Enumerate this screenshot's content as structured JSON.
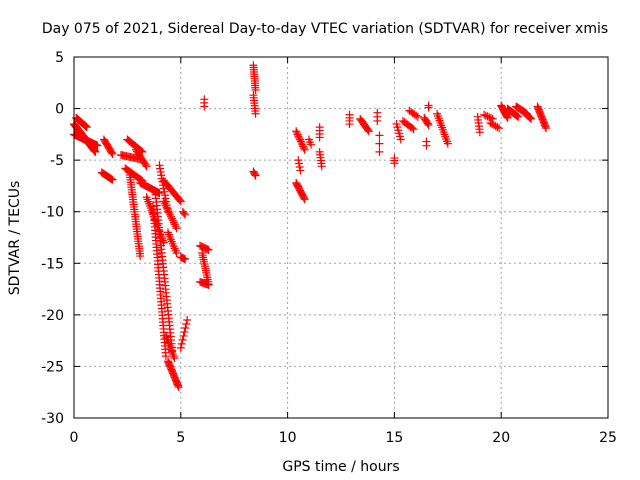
{
  "chart_data": {
    "type": "scatter",
    "title": "Day 075 of 2021, Sidereal Day-to-day VTEC variation (SDTVAR) for receiver xmis",
    "xlabel": "GPS time / hours",
    "ylabel": "SDTVAR / TECUs",
    "xlim": [
      0,
      25
    ],
    "ylim": [
      -30,
      5
    ],
    "xticks": [
      0,
      5,
      10,
      15,
      20,
      25
    ],
    "xtick_labels": [
      "0",
      "5",
      "10",
      "15",
      "20",
      "25"
    ],
    "yticks": [
      5,
      0,
      -5,
      -10,
      -15,
      -20,
      -25,
      -30
    ],
    "ytick_labels": [
      "5",
      "0",
      "-5",
      "-10",
      "-15",
      "-20",
      "-25",
      "-30"
    ],
    "grid": true,
    "marker": "+",
    "color": "#ff0000",
    "series_segments": [
      {
        "x0": 0.0,
        "y0": -1.5,
        "x1": 1.0,
        "y1": -4.2,
        "n": 50
      },
      {
        "x0": 0.0,
        "y0": -2.5,
        "x1": 1.1,
        "y1": -3.6,
        "n": 40
      },
      {
        "x0": 0.1,
        "y0": -0.9,
        "x1": 0.6,
        "y1": -1.8,
        "n": 15
      },
      {
        "x0": 1.4,
        "y0": -3.0,
        "x1": 1.8,
        "y1": -4.4,
        "n": 12
      },
      {
        "x0": 1.3,
        "y0": -6.2,
        "x1": 1.8,
        "y1": -6.9,
        "n": 12
      },
      {
        "x0": 2.2,
        "y0": -4.5,
        "x1": 3.1,
        "y1": -4.9,
        "n": 15
      },
      {
        "x0": 2.4,
        "y0": -5.8,
        "x1": 3.2,
        "y1": -7.0,
        "n": 15
      },
      {
        "x0": 2.5,
        "y0": -3.0,
        "x1": 3.2,
        "y1": -4.2,
        "n": 14
      },
      {
        "x0": 2.9,
        "y0": -4.0,
        "x1": 3.4,
        "y1": -5.6,
        "n": 12
      },
      {
        "x0": 2.6,
        "y0": -6.2,
        "x1": 3.1,
        "y1": -14.3,
        "n": 35
      },
      {
        "x0": 3.1,
        "y0": -7.2,
        "x1": 4.0,
        "y1": -8.2,
        "n": 20
      },
      {
        "x0": 3.4,
        "y0": -8.6,
        "x1": 4.2,
        "y1": -13.0,
        "n": 22
      },
      {
        "x0": 3.7,
        "y0": -9.5,
        "x1": 4.3,
        "y1": -24.0,
        "n": 45
      },
      {
        "x0": 3.8,
        "y0": -8.0,
        "x1": 4.6,
        "y1": -23.5,
        "n": 45
      },
      {
        "x0": 4.0,
        "y0": -5.5,
        "x1": 4.4,
        "y1": -10.0,
        "n": 15
      },
      {
        "x0": 4.2,
        "y0": -9.0,
        "x1": 4.8,
        "y1": -11.6,
        "n": 15
      },
      {
        "x0": 4.2,
        "y0": -7.0,
        "x1": 5.0,
        "y1": -9.0,
        "n": 18
      },
      {
        "x0": 4.4,
        "y0": -12.0,
        "x1": 4.8,
        "y1": -14.0,
        "n": 10
      },
      {
        "x0": 4.3,
        "y0": -22.0,
        "x1": 4.7,
        "y1": -24.2,
        "n": 12
      },
      {
        "x0": 4.4,
        "y0": -24.5,
        "x1": 4.9,
        "y1": -27.0,
        "n": 20
      },
      {
        "x0": 5.0,
        "y0": -14.4,
        "x1": 5.2,
        "y1": -14.6,
        "n": 5
      },
      {
        "x0": 5.0,
        "y0": -23.2,
        "x1": 5.3,
        "y1": -20.5,
        "n": 8
      },
      {
        "x0": 5.1,
        "y0": -10.0,
        "x1": 5.2,
        "y1": -10.3,
        "n": 3
      },
      {
        "x0": 5.9,
        "y0": -13.3,
        "x1": 6.3,
        "y1": -13.7,
        "n": 8
      },
      {
        "x0": 6.0,
        "y0": -14.0,
        "x1": 6.3,
        "y1": -17.0,
        "n": 15
      },
      {
        "x0": 5.9,
        "y0": -16.8,
        "x1": 6.3,
        "y1": -17.1,
        "n": 8
      },
      {
        "x0": 6.1,
        "y0": 0.9,
        "x1": 6.1,
        "y1": 0.2,
        "n": 3
      },
      {
        "x0": 8.4,
        "y0": 4.2,
        "x1": 8.5,
        "y1": 1.8,
        "n": 12
      },
      {
        "x0": 8.4,
        "y0": 1.3,
        "x1": 8.5,
        "y1": -0.5,
        "n": 8
      },
      {
        "x0": 8.4,
        "y0": -6.1,
        "x1": 8.5,
        "y1": -6.5,
        "n": 4
      },
      {
        "x0": 10.4,
        "y0": -2.2,
        "x1": 10.8,
        "y1": -4.0,
        "n": 12
      },
      {
        "x0": 10.4,
        "y0": -7.2,
        "x1": 10.8,
        "y1": -8.8,
        "n": 14
      },
      {
        "x0": 10.5,
        "y0": -5.0,
        "x1": 10.6,
        "y1": -6.0,
        "n": 4
      },
      {
        "x0": 11.0,
        "y0": -3.0,
        "x1": 11.1,
        "y1": -3.5,
        "n": 3
      },
      {
        "x0": 11.5,
        "y0": -1.8,
        "x1": 11.5,
        "y1": -2.8,
        "n": 4
      },
      {
        "x0": 11.5,
        "y0": -4.2,
        "x1": 11.6,
        "y1": -5.6,
        "n": 6
      },
      {
        "x0": 12.9,
        "y0": -0.6,
        "x1": 12.9,
        "y1": -1.5,
        "n": 4
      },
      {
        "x0": 13.4,
        "y0": -1.0,
        "x1": 13.8,
        "y1": -2.2,
        "n": 10
      },
      {
        "x0": 14.2,
        "y0": -0.4,
        "x1": 14.2,
        "y1": -1.2,
        "n": 3
      },
      {
        "x0": 14.3,
        "y0": -2.6,
        "x1": 14.3,
        "y1": -4.2,
        "n": 3
      },
      {
        "x0": 15.0,
        "y0": -4.8,
        "x1": 15.0,
        "y1": -5.3,
        "n": 3
      },
      {
        "x0": 15.1,
        "y0": -1.5,
        "x1": 15.3,
        "y1": -3.0,
        "n": 6
      },
      {
        "x0": 15.4,
        "y0": -1.2,
        "x1": 15.9,
        "y1": -2.0,
        "n": 8
      },
      {
        "x0": 15.7,
        "y0": -0.2,
        "x1": 16.1,
        "y1": -0.8,
        "n": 6
      },
      {
        "x0": 16.4,
        "y0": -0.9,
        "x1": 16.6,
        "y1": -1.6,
        "n": 6
      },
      {
        "x0": 16.5,
        "y0": -3.2,
        "x1": 16.5,
        "y1": -3.6,
        "n": 2
      },
      {
        "x0": 16.6,
        "y0": 0.3,
        "x1": 16.6,
        "y1": 0.1,
        "n": 2
      },
      {
        "x0": 17.0,
        "y0": -0.5,
        "x1": 17.5,
        "y1": -3.4,
        "n": 14
      },
      {
        "x0": 18.9,
        "y0": -0.8,
        "x1": 19.0,
        "y1": -2.3,
        "n": 6
      },
      {
        "x0": 19.2,
        "y0": -0.6,
        "x1": 19.6,
        "y1": -1.0,
        "n": 6
      },
      {
        "x0": 19.5,
        "y0": -1.4,
        "x1": 19.9,
        "y1": -1.9,
        "n": 6
      },
      {
        "x0": 20.0,
        "y0": 0.3,
        "x1": 20.3,
        "y1": -0.9,
        "n": 12
      },
      {
        "x0": 20.3,
        "y0": 0.0,
        "x1": 20.8,
        "y1": -0.8,
        "n": 12
      },
      {
        "x0": 20.7,
        "y0": 0.2,
        "x1": 21.2,
        "y1": -0.5,
        "n": 12
      },
      {
        "x0": 21.0,
        "y0": -0.2,
        "x1": 21.4,
        "y1": -1.0,
        "n": 10
      },
      {
        "x0": 21.7,
        "y0": 0.2,
        "x1": 22.1,
        "y1": -1.9,
        "n": 16
      }
    ]
  }
}
